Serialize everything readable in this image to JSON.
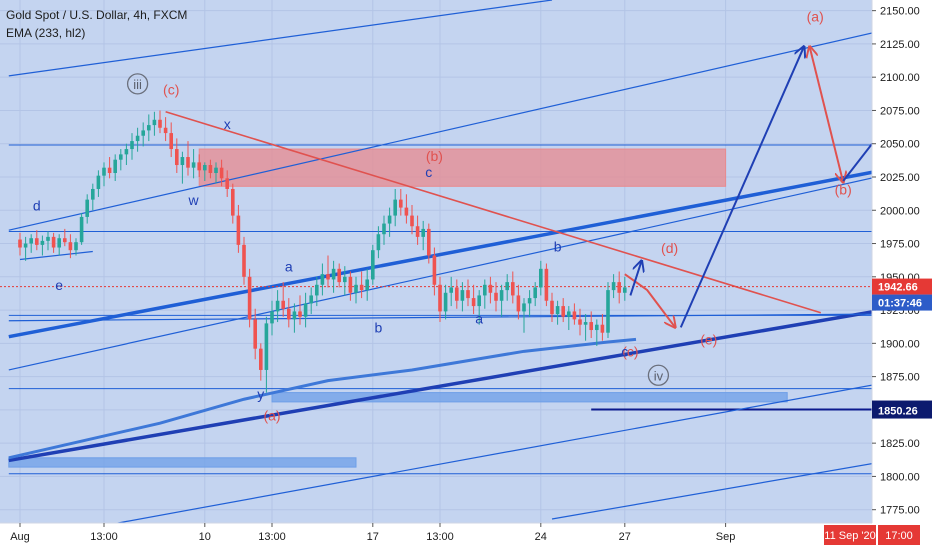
{
  "header": {
    "symbol_line": "Gold Spot / U.S. Dollar, 4h, FXCM",
    "indicator_line": "EMA (233, hl2)"
  },
  "colors": {
    "background": "#c4d4f0",
    "candle_up": "#26a69a",
    "candle_down": "#ef5350",
    "channel_blue": "#1f5fd6",
    "wave_red": "#e0524f",
    "wave_blue": "#1f3fb4",
    "zone_red": "#e88a8f",
    "zone_blue": "#6e9fe8",
    "price_tag": "#e53935",
    "timer_tag": "#2d5cc8",
    "level_tag": "#0c1a6e"
  },
  "chart_data": {
    "type": "candlestick",
    "symbol": "Gold Spot / U.S. Dollar",
    "timeframe": "4h",
    "source": "FXCM",
    "indicator": "EMA (233, hl2)",
    "ylim": [
      1765,
      2158
    ],
    "y_ticks": [
      2150,
      2125,
      2100,
      2075,
      2050,
      2025,
      2000,
      1975,
      1950,
      1925,
      1900,
      1875,
      1850,
      1825,
      1800,
      1775
    ],
    "y_tick_labels": [
      "2150.00",
      "2125.00",
      "2100.00",
      "2075.00",
      "2050.00",
      "2025.00",
      "2000.00",
      "1975.00",
      "1950.00",
      "1925.00",
      "1900.00",
      "1875.00",
      "1850.00",
      "1825.00",
      "1800.00",
      "1775.00"
    ],
    "x_labels": [
      "Aug",
      "13:00",
      "10",
      "13:00",
      "17",
      "13:00",
      "24",
      "27",
      "Sep"
    ],
    "x_label_bars": [
      0,
      15,
      33,
      45,
      63,
      75,
      93,
      108,
      126
    ],
    "last_price": "1942.66",
    "countdown": "01:37:46",
    "marked_level": "1850.26",
    "date_tag": "11 Sep '20",
    "time_tag": "17:00",
    "candles_ohlc": [
      [
        1978,
        1983,
        1966,
        1972
      ],
      [
        1972,
        1980,
        1962,
        1975
      ],
      [
        1975,
        1982,
        1968,
        1979
      ],
      [
        1979,
        1985,
        1970,
        1974
      ],
      [
        1974,
        1981,
        1966,
        1977
      ],
      [
        1977,
        1984,
        1970,
        1980
      ],
      [
        1980,
        1983,
        1968,
        1972
      ],
      [
        1972,
        1982,
        1966,
        1979
      ],
      [
        1979,
        1986,
        1973,
        1976
      ],
      [
        1976,
        1982,
        1964,
        1970
      ],
      [
        1970,
        1979,
        1966,
        1976
      ],
      [
        1976,
        1998,
        1974,
        1995
      ],
      [
        1995,
        2012,
        1990,
        2008
      ],
      [
        2008,
        2020,
        2000,
        2016
      ],
      [
        2016,
        2030,
        2010,
        2026
      ],
      [
        2026,
        2036,
        2018,
        2032
      ],
      [
        2032,
        2040,
        2024,
        2028
      ],
      [
        2028,
        2042,
        2022,
        2038
      ],
      [
        2038,
        2046,
        2030,
        2042
      ],
      [
        2042,
        2050,
        2034,
        2046
      ],
      [
        2046,
        2058,
        2038,
        2052
      ],
      [
        2052,
        2062,
        2044,
        2056
      ],
      [
        2056,
        2066,
        2048,
        2060
      ],
      [
        2060,
        2072,
        2052,
        2064
      ],
      [
        2064,
        2074,
        2056,
        2068
      ],
      [
        2068,
        2075,
        2058,
        2062
      ],
      [
        2062,
        2070,
        2052,
        2058
      ],
      [
        2058,
        2066,
        2040,
        2046
      ],
      [
        2046,
        2054,
        2028,
        2034
      ],
      [
        2034,
        2044,
        2020,
        2040
      ],
      [
        2040,
        2052,
        2026,
        2032
      ],
      [
        2032,
        2046,
        2024,
        2036
      ],
      [
        2036,
        2042,
        2025,
        2030
      ],
      [
        2030,
        2036,
        2022,
        2034
      ],
      [
        2034,
        2038,
        2024,
        2028
      ],
      [
        2028,
        2036,
        2020,
        2032
      ],
      [
        2032,
        2038,
        2018,
        2024
      ],
      [
        2024,
        2030,
        2010,
        2016
      ],
      [
        2016,
        2020,
        1990,
        1996
      ],
      [
        1996,
        2004,
        1968,
        1974
      ],
      [
        1974,
        1980,
        1944,
        1950
      ],
      [
        1950,
        1956,
        1912,
        1918
      ],
      [
        1918,
        1926,
        1888,
        1896
      ],
      [
        1896,
        1900,
        1872,
        1880
      ],
      [
        1880,
        1920,
        1863,
        1915
      ],
      [
        1915,
        1932,
        1906,
        1924
      ],
      [
        1924,
        1940,
        1916,
        1932
      ],
      [
        1932,
        1946,
        1920,
        1926
      ],
      [
        1926,
        1934,
        1912,
        1918
      ],
      [
        1918,
        1930,
        1908,
        1924
      ],
      [
        1924,
        1936,
        1914,
        1920
      ],
      [
        1920,
        1938,
        1912,
        1930
      ],
      [
        1930,
        1942,
        1922,
        1936
      ],
      [
        1936,
        1950,
        1928,
        1944
      ],
      [
        1944,
        1960,
        1936,
        1952
      ],
      [
        1952,
        1966,
        1942,
        1948
      ],
      [
        1948,
        1962,
        1938,
        1956
      ],
      [
        1956,
        1960,
        1942,
        1946
      ],
      [
        1946,
        1958,
        1936,
        1950
      ],
      [
        1950,
        1954,
        1932,
        1938
      ],
      [
        1938,
        1950,
        1930,
        1944
      ],
      [
        1944,
        1954,
        1934,
        1940
      ],
      [
        1940,
        1956,
        1932,
        1948
      ],
      [
        1948,
        1974,
        1944,
        1970
      ],
      [
        1970,
        1988,
        1964,
        1982
      ],
      [
        1982,
        1996,
        1974,
        1990
      ],
      [
        1990,
        2002,
        1980,
        1996
      ],
      [
        1996,
        2016,
        1988,
        2008
      ],
      [
        2008,
        2016,
        1996,
        2002
      ],
      [
        2002,
        2012,
        1990,
        1996
      ],
      [
        1996,
        2004,
        1982,
        1988
      ],
      [
        1988,
        1996,
        1974,
        1980
      ],
      [
        1980,
        1992,
        1970,
        1986
      ],
      [
        1986,
        1990,
        1960,
        1966
      ],
      [
        1966,
        1972,
        1936,
        1944
      ],
      [
        1944,
        1950,
        1916,
        1924
      ],
      [
        1924,
        1944,
        1918,
        1938
      ],
      [
        1938,
        1950,
        1928,
        1942
      ],
      [
        1942,
        1948,
        1926,
        1932
      ],
      [
        1932,
        1946,
        1924,
        1940
      ],
      [
        1940,
        1948,
        1928,
        1934
      ],
      [
        1934,
        1944,
        1922,
        1928
      ],
      [
        1928,
        1940,
        1914,
        1936
      ],
      [
        1936,
        1948,
        1926,
        1944
      ],
      [
        1944,
        1950,
        1930,
        1938
      ],
      [
        1938,
        1946,
        1924,
        1932
      ],
      [
        1932,
        1944,
        1920,
        1940
      ],
      [
        1940,
        1952,
        1932,
        1946
      ],
      [
        1946,
        1954,
        1930,
        1936
      ],
      [
        1936,
        1944,
        1918,
        1924
      ],
      [
        1924,
        1934,
        1908,
        1930
      ],
      [
        1930,
        1940,
        1920,
        1934
      ],
      [
        1934,
        1946,
        1928,
        1942
      ],
      [
        1942,
        1962,
        1936,
        1956
      ],
      [
        1956,
        1960,
        1928,
        1932
      ],
      [
        1932,
        1938,
        1916,
        1922
      ],
      [
        1922,
        1932,
        1914,
        1928
      ],
      [
        1928,
        1934,
        1916,
        1920
      ],
      [
        1920,
        1928,
        1910,
        1924
      ],
      [
        1924,
        1930,
        1914,
        1918
      ],
      [
        1918,
        1926,
        1906,
        1914
      ],
      [
        1914,
        1922,
        1902,
        1916
      ],
      [
        1916,
        1924,
        1904,
        1910
      ],
      [
        1910,
        1918,
        1898,
        1914
      ],
      [
        1914,
        1922,
        1902,
        1908
      ],
      [
        1908,
        1946,
        1904,
        1940
      ],
      [
        1940,
        1952,
        1934,
        1946
      ],
      [
        1946,
        1954,
        1930,
        1938
      ],
      [
        1938,
        1950,
        1932,
        1942
      ]
    ],
    "ema_233": [
      [
        -2,
        1814
      ],
      [
        25,
        1840
      ],
      [
        40,
        1858
      ],
      [
        55,
        1872
      ],
      [
        70,
        1880
      ],
      [
        90,
        1894
      ],
      [
        105,
        1901
      ],
      [
        110,
        1903
      ]
    ],
    "channel_lines": [
      {
        "from": [
          -2,
          1905
        ],
        "to": [
          154,
          2030
        ],
        "weight": "thick",
        "color": "channel_blue"
      },
      {
        "from": [
          -2,
          1812
        ],
        "to": [
          154,
          1925
        ],
        "weight": "thick",
        "color": "wave_blue"
      },
      {
        "from": [
          -2,
          1917
        ],
        "to": [
          154,
          1922
        ],
        "weight": "thin",
        "color": "channel_blue"
      },
      {
        "from": [
          -2,
          2101
        ],
        "to": [
          95,
          2158
        ],
        "weight": "thin",
        "color": "channel_blue"
      },
      {
        "from": [
          -2,
          1985
        ],
        "to": [
          154,
          2135
        ],
        "weight": "thin",
        "color": "channel_blue"
      },
      {
        "from": [
          -2,
          1880
        ],
        "to": [
          154,
          2026
        ],
        "weight": "thin",
        "color": "channel_blue"
      },
      {
        "from": [
          -2,
          1750
        ],
        "to": [
          154,
          1870
        ],
        "weight": "thin",
        "color": "channel_blue"
      },
      {
        "from": [
          95,
          1768
        ],
        "to": [
          154,
          1811
        ],
        "weight": "thin",
        "color": "channel_blue"
      },
      {
        "from": [
          0,
          1963
        ],
        "to": [
          13,
          1969
        ],
        "weight": "thin",
        "color": "channel_blue"
      }
    ],
    "horizontal_lines": [
      {
        "y": 2049,
        "from": -2,
        "to": 154
      },
      {
        "y": 1984,
        "from": -2,
        "to": 154
      },
      {
        "y": 1866,
        "from": -2,
        "to": 154
      },
      {
        "y": 1802,
        "from": -2,
        "to": 154
      },
      {
        "y": 1921,
        "from": -2,
        "to": 154
      },
      {
        "y": 1850.26,
        "from": 102,
        "to": 154,
        "weight": "medium"
      }
    ],
    "price_dotted_line": 1942.66,
    "zones": [
      {
        "x0": 32,
        "x1": 126,
        "y0": 2046,
        "y1": 2018,
        "color": "zone_red"
      },
      {
        "x0": 45,
        "x1": 137,
        "y0": 1863,
        "y1": 1856,
        "color": "zone_blue"
      },
      {
        "x0": -2,
        "x1": 60,
        "y0": 1814,
        "y1": 1807,
        "color": "zone_blue"
      }
    ],
    "red_trendline": {
      "from": [
        26,
        2074
      ],
      "to": [
        143,
        1923
      ]
    },
    "vertical_marker_bar": 155,
    "projection_red": [
      [
        108,
        1952
      ],
      [
        112,
        1940
      ],
      [
        117,
        1912
      ]
    ],
    "projection_red_up": [
      [
        147,
        2021
      ],
      [
        141,
        2123
      ]
    ],
    "projection_blue": [
      [
        109,
        1936
      ],
      [
        111,
        1962
      ]
    ],
    "projection_blue_big": [
      [
        118,
        1912
      ],
      [
        140,
        2123
      ]
    ],
    "projection_blue_right": [
      [
        147,
        2022
      ],
      [
        161,
        2098
      ]
    ],
    "wave_labels": [
      {
        "text": "(a)",
        "x": 142,
        "y": 2142,
        "color": "wave_red"
      },
      {
        "text": "(b)",
        "x": 147,
        "y": 2012,
        "color": "wave_red"
      },
      {
        "text": "(b)",
        "x": 74,
        "y": 2037,
        "color": "wave_red"
      },
      {
        "text": "(c)",
        "x": 27,
        "y": 2087,
        "color": "wave_red"
      },
      {
        "text": "(d)",
        "x": 116,
        "y": 1968,
        "color": "wave_red"
      },
      {
        "text": "(e)",
        "x": 123,
        "y": 1899,
        "color": "wave_red"
      },
      {
        "text": "(a)",
        "x": 45,
        "y": 1842,
        "color": "wave_red"
      },
      {
        "text": "(c)",
        "x": 109,
        "y": 1890,
        "color": "wave_red"
      },
      {
        "text": "x",
        "x": 37,
        "y": 2061,
        "color": "wave_blue"
      },
      {
        "text": "w",
        "x": 31,
        "y": 2004,
        "color": "wave_blue"
      },
      {
        "text": "y",
        "x": 43,
        "y": 1858,
        "color": "wave_blue"
      },
      {
        "text": "c",
        "x": 73,
        "y": 2025,
        "color": "wave_blue"
      },
      {
        "text": "b",
        "x": 96,
        "y": 1969,
        "color": "wave_blue"
      },
      {
        "text": "a",
        "x": 82,
        "y": 1915,
        "color": "wave_blue"
      },
      {
        "text": "a",
        "x": 48,
        "y": 1954,
        "color": "wave_blue"
      },
      {
        "text": "b",
        "x": 64,
        "y": 1908,
        "color": "wave_blue"
      },
      {
        "text": "c",
        "x": 108,
        "y": 1890,
        "color": "wave_blue"
      },
      {
        "text": "d",
        "x": 3,
        "y": 2000,
        "color": "wave_blue"
      },
      {
        "text": "e",
        "x": 7,
        "y": 1940,
        "color": "wave_blue"
      }
    ],
    "circled_labels": [
      {
        "text": "iii",
        "x": 21,
        "y": 2095
      },
      {
        "text": "iv",
        "x": 114,
        "y": 1876
      }
    ]
  }
}
